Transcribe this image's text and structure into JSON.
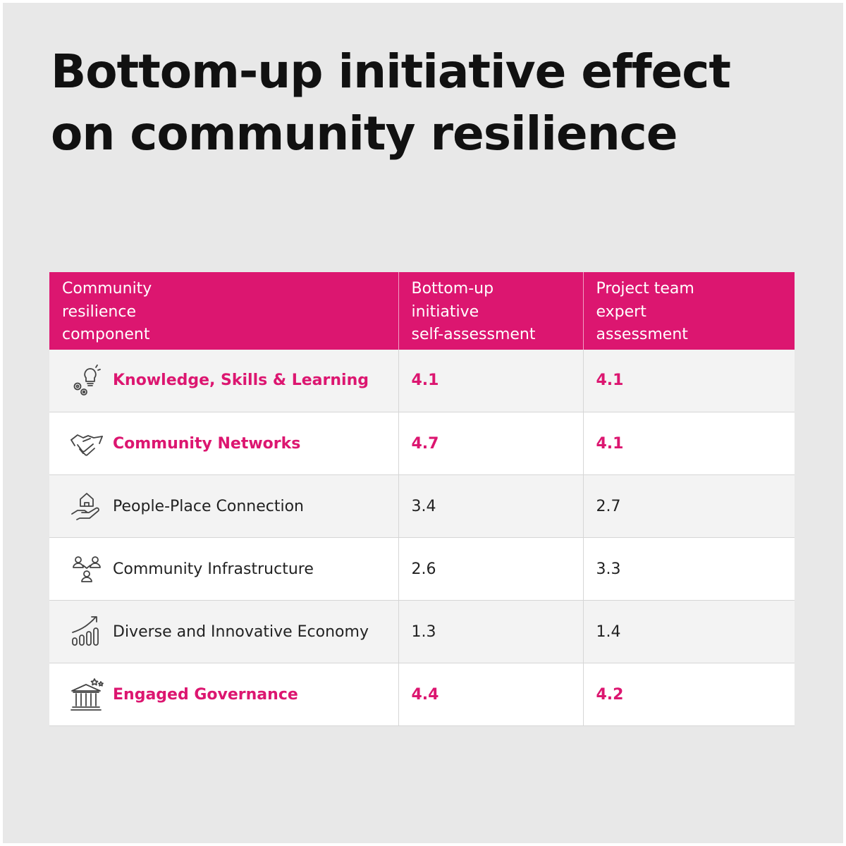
{
  "chart_data": {
    "type": "table",
    "title_lines": [
      "Bottom-up initiative effect",
      "on community resilience"
    ],
    "columns": [
      [
        "Community",
        "resilience",
        "component"
      ],
      [
        "Bottom-up",
        "initiative",
        "self-assessment"
      ],
      [
        "Project team",
        "expert",
        "assessment"
      ]
    ],
    "rows": [
      {
        "component": "Knowledge, Skills & Learning",
        "icon": "lightbulb-gears-icon",
        "self_assessment": "4.1",
        "expert_assessment": "4.1",
        "highlight": true
      },
      {
        "component": "Community Networks",
        "icon": "handshake-icon",
        "self_assessment": "4.7",
        "expert_assessment": "4.1",
        "highlight": true
      },
      {
        "component": "People-Place Connection",
        "icon": "hand-house-icon",
        "self_assessment": "3.4",
        "expert_assessment": "2.7",
        "highlight": false
      },
      {
        "component": "Community Infrastructure",
        "icon": "people-network-icon",
        "self_assessment": "2.6",
        "expert_assessment": "3.3",
        "highlight": false
      },
      {
        "component": "Diverse and Innovative Economy",
        "icon": "growth-chart-icon",
        "self_assessment": "1.3",
        "expert_assessment": "1.4",
        "highlight": false
      },
      {
        "component": "Engaged Governance",
        "icon": "government-building-icon",
        "self_assessment": "4.4",
        "expert_assessment": "4.2",
        "highlight": true
      }
    ]
  },
  "colors": {
    "accent": "#dc1670",
    "background": "#e8e8e8",
    "text": "#222222"
  }
}
